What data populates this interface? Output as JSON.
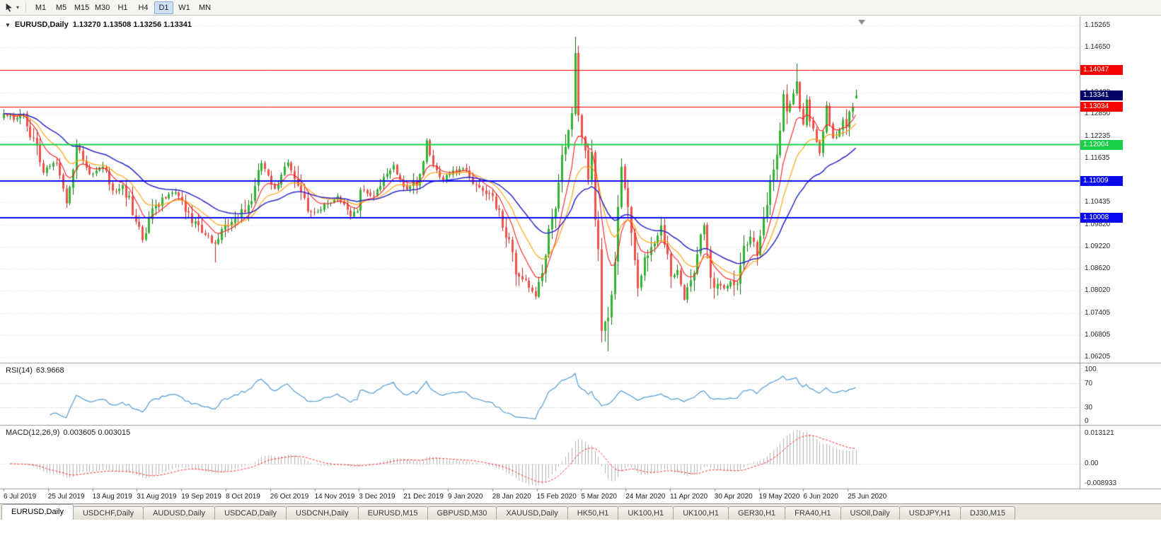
{
  "toolbar": {
    "timeframes": [
      {
        "label": "M1",
        "active": false
      },
      {
        "label": "M5",
        "active": false
      },
      {
        "label": "M15",
        "active": false
      },
      {
        "label": "M30",
        "active": false
      },
      {
        "label": "H1",
        "active": false
      },
      {
        "label": "H4",
        "active": false
      },
      {
        "label": "D1",
        "active": true
      },
      {
        "label": "W1",
        "active": false
      },
      {
        "label": "MN",
        "active": false
      }
    ]
  },
  "chart": {
    "title": "EURUSD,Daily",
    "ohlc": "1.13270 1.13508 1.13256 1.13341",
    "current_price": {
      "value": 1.13341,
      "label": "1.13341",
      "badge": "#000066"
    },
    "axis_ticks": [
      "1.15265",
      "1.14650",
      "1.14035",
      "1.13420",
      "1.12850",
      "1.12235",
      "1.11635",
      "1.11035",
      "1.10435",
      "1.09820",
      "1.09220",
      "1.08620",
      "1.08020",
      "1.07405",
      "1.06805",
      "1.06205"
    ],
    "hlines": [
      {
        "value": 1.14047,
        "label": "1.14047",
        "color": "#f60000",
        "width": 1
      },
      {
        "value": 1.13034,
        "label": "1.13034",
        "color": "#f60000",
        "width": 1
      },
      {
        "value": 1.12004,
        "label": "1.12004",
        "color": "#17cf49",
        "width": 2
      },
      {
        "value": 1.11009,
        "label": "1.11009",
        "color": "#0808f0",
        "width": 2
      },
      {
        "value": 1.10008,
        "label": "1.10008",
        "color": "#0808f0",
        "width": 2
      }
    ],
    "colors": {
      "up": "#2fb52f",
      "up_dark": "#156e15",
      "down": "#f0504a",
      "down_dark": "#b52b26",
      "grid": "#dcdcdc",
      "axis_text": "#2a2a2a",
      "rsi": "#4f9bd5",
      "macd_hist": "#b2b2b2",
      "macd_signal": "#ff3030"
    },
    "x_labels": [
      "6 Jul 2019",
      "25 Jul 2019",
      "13 Aug 2019",
      "31 Aug 2019",
      "19 Sep 2019",
      "8 Oct 2019",
      "26 Oct 2019",
      "14 Nov 2019",
      "3 Dec 2019",
      "21 Dec 2019",
      "9 Jan 2020",
      "28 Jan 2020",
      "15 Feb 2020",
      "5 Mar 2020",
      "24 Mar 2020",
      "11 Apr 2020",
      "30 Apr 2020",
      "19 May 2020",
      "6 Jun 2020",
      "25 Jun 2020"
    ]
  },
  "rsi": {
    "title": "RSI(14)",
    "value": "63.9668",
    "levels": [
      "100",
      "70",
      "30",
      "0"
    ]
  },
  "macd": {
    "title": "MACD(12,26,9)",
    "values": "0.003605 0.003015",
    "axis": [
      "0.013121",
      "0.00",
      "-0.008933"
    ]
  },
  "tabs": [
    {
      "label": "EURUSD,Daily",
      "active": true
    },
    {
      "label": "USDCHF,Daily",
      "active": false
    },
    {
      "label": "AUDUSD,Daily",
      "active": false
    },
    {
      "label": "USDCAD,Daily",
      "active": false
    },
    {
      "label": "USDCNH,Daily",
      "active": false
    },
    {
      "label": "EURUSD,M15",
      "active": false
    },
    {
      "label": "GBPUSD,M30",
      "active": false
    },
    {
      "label": "XAUUSD,Daily",
      "active": false
    },
    {
      "label": "HK50,H1",
      "active": false
    },
    {
      "label": "UK100,H1",
      "active": false
    },
    {
      "label": "UK100,H1",
      "active": false
    },
    {
      "label": "GER30,H1",
      "active": false
    },
    {
      "label": "FRA40,H1",
      "active": false
    },
    {
      "label": "USOil,Daily",
      "active": false
    },
    {
      "label": "USDJPY,H1",
      "active": false
    },
    {
      "label": "DJ30,M15",
      "active": false
    }
  ],
  "chart_data": {
    "type": "candlestick",
    "title": "EURUSD,Daily",
    "symbol": "EURUSD",
    "period": "Daily",
    "last_ohlc": {
      "open": 1.1327,
      "high": 1.13508,
      "low": 1.13256,
      "close": 1.13341
    },
    "x_range": [
      "6 Jul 2019",
      "7 Jul 2020"
    ],
    "y_range": [
      1.0605,
      1.1545
    ],
    "count": 259,
    "horizontal_levels": [
      1.14047,
      1.13034,
      1.12004,
      1.11009,
      1.10008
    ],
    "path_anchors": [
      [
        0,
        1.1285
      ],
      [
        3,
        1.1268
      ],
      [
        6,
        1.1284
      ],
      [
        12,
        1.1124
      ],
      [
        16,
        1.115
      ],
      [
        19,
        1.104
      ],
      [
        22,
        1.12
      ],
      [
        26,
        1.112
      ],
      [
        30,
        1.114
      ],
      [
        33,
        1.1075
      ],
      [
        36,
        1.109
      ],
      [
        40,
        1.099
      ],
      [
        42,
        1.094
      ],
      [
        46,
        1.1035
      ],
      [
        52,
        1.107
      ],
      [
        56,
        1.1015
      ],
      [
        60,
        1.096
      ],
      [
        64,
        1.093
      ],
      [
        66,
        1.097
      ],
      [
        71,
        1.1
      ],
      [
        74,
        1.1035
      ],
      [
        78,
        1.115
      ],
      [
        82,
        1.108
      ],
      [
        86,
        1.1152
      ],
      [
        90,
        1.107
      ],
      [
        92,
        1.1018
      ],
      [
        96,
        1.1023
      ],
      [
        101,
        1.106
      ],
      [
        105,
        1.1005
      ],
      [
        107,
        1.1018
      ],
      [
        108,
        1.1077
      ],
      [
        112,
        1.106
      ],
      [
        118,
        1.1145
      ],
      [
        122,
        1.1078
      ],
      [
        126,
        1.112
      ],
      [
        128,
        1.1212
      ],
      [
        129,
        1.1172
      ],
      [
        133,
        1.1103
      ],
      [
        136,
        1.113
      ],
      [
        139,
        1.1136
      ],
      [
        143,
        1.109
      ],
      [
        148,
        1.106
      ],
      [
        152,
        1.0946
      ],
      [
        156,
        1.084
      ],
      [
        161,
        1.0786
      ],
      [
        163,
        1.085
      ],
      [
        166,
        1.1
      ],
      [
        167,
        1.1026
      ],
      [
        169,
        1.1172
      ],
      [
        171,
        1.124
      ],
      [
        172,
        1.1286
      ],
      [
        173,
        1.145
      ],
      [
        174,
        1.128
      ],
      [
        176,
        1.1184
      ],
      [
        177,
        1.1105
      ],
      [
        178,
        1.118
      ],
      [
        179,
        1.0995
      ],
      [
        180,
        1.0915
      ],
      [
        181,
        1.0692
      ],
      [
        183,
        1.0727
      ],
      [
        184,
        1.079
      ],
      [
        185,
        1.088
      ],
      [
        186,
        1.103
      ],
      [
        187,
        1.114
      ],
      [
        189,
        1.103
      ],
      [
        190,
        1.096
      ],
      [
        192,
        1.0808
      ],
      [
        194,
        1.0893
      ],
      [
        197,
        1.093
      ],
      [
        199,
        1.098
      ],
      [
        202,
        1.084
      ],
      [
        204,
        1.0858
      ],
      [
        206,
        1.0777
      ],
      [
        208,
        1.083
      ],
      [
        211,
        1.0955
      ],
      [
        212,
        1.098
      ],
      [
        214,
        1.0837
      ],
      [
        218,
        1.0808
      ],
      [
        222,
        1.082
      ],
      [
        224,
        1.0924
      ],
      [
        226,
        1.0949
      ],
      [
        228,
        1.0897
      ],
      [
        230,
        1.1002
      ],
      [
        232,
        1.1101
      ],
      [
        234,
        1.1173
      ],
      [
        236,
        1.1338
      ],
      [
        237,
        1.1291
      ],
      [
        239,
        1.134
      ],
      [
        240,
        1.1373
      ],
      [
        241,
        1.1298
      ],
      [
        242,
        1.1256
      ],
      [
        243,
        1.1323
      ],
      [
        245,
        1.1244
      ],
      [
        247,
        1.1177
      ],
      [
        249,
        1.1308
      ],
      [
        251,
        1.1218
      ],
      [
        253,
        1.1242
      ],
      [
        254,
        1.1268
      ],
      [
        255,
        1.1248
      ],
      [
        256,
        1.129
      ],
      [
        257,
        1.1302
      ],
      [
        258,
        1.13341
      ]
    ],
    "overrides": {
      "19": {
        "l": 1.1027
      },
      "64": {
        "l": 1.0879
      },
      "161": {
        "l": 1.0778
      },
      "173": {
        "h": 1.1495
      },
      "183": {
        "l": 1.0636
      },
      "240": {
        "h": 1.1422
      },
      "258": {
        "o": 1.1327,
        "h": 1.13508,
        "l": 1.13256,
        "c": 1.13341
      }
    },
    "indicators": {
      "ma": [
        {
          "type": "ema",
          "period": 8,
          "color": "#ff1f1f"
        },
        {
          "type": "ema",
          "period": 16,
          "color": "#ff9d00"
        },
        {
          "type": "ema",
          "period": 34,
          "color": "#2929cc"
        }
      ],
      "rsi": {
        "period": 14,
        "current": 63.9668,
        "levels": [
          70,
          30
        ]
      },
      "macd": {
        "fast": 12,
        "slow": 26,
        "signal": 9,
        "current_main": 0.003605,
        "current_signal": 0.003015,
        "scale_max": 0.013121,
        "scale_min": -0.008933
      }
    }
  }
}
